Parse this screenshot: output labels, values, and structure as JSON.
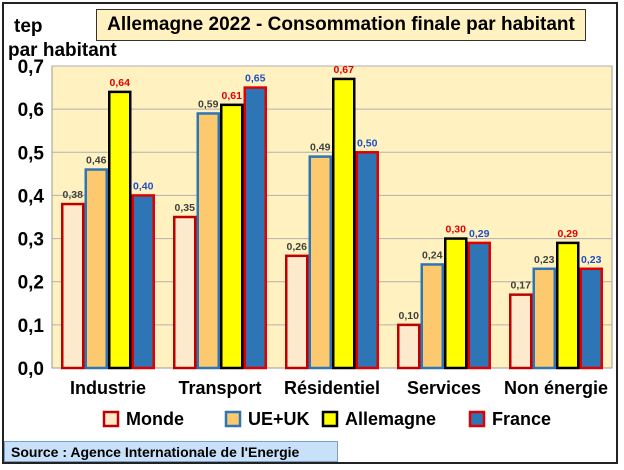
{
  "chart_data": {
    "type": "bar",
    "title": "Allemagne 2022 - Consommation finale par habitant",
    "ylabel_line1": "tep",
    "ylabel_line2": "par habitant",
    "xlabel": "",
    "ylim": [
      0,
      0.7
    ],
    "yticks": [
      "0,0",
      "0,1",
      "0,2",
      "0,3",
      "0,4",
      "0,5",
      "0,6",
      "0,7"
    ],
    "grid": true,
    "legend_position": "bottom",
    "categories": [
      "Industrie",
      "Transport",
      "Résidentiel",
      "Services",
      "Non énergie"
    ],
    "series": [
      {
        "name": "Monde",
        "values": [
          0.38,
          0.35,
          0.26,
          0.1,
          0.17
        ],
        "labels": [
          "0,38",
          "0,35",
          "0,26",
          "0,10",
          "0,17"
        ],
        "fill": "#fde9cc",
        "stroke": "#c00000",
        "label_color": "#404040"
      },
      {
        "name": "UE+UK",
        "values": [
          0.46,
          0.59,
          0.49,
          0.24,
          0.23
        ],
        "labels": [
          "0,46",
          "0,59",
          "0,49",
          "0,24",
          "0,23"
        ],
        "fill": "#fcc96e",
        "stroke": "#2e75b6",
        "label_color": "#404040"
      },
      {
        "name": "Allemagne",
        "values": [
          0.64,
          0.61,
          0.67,
          0.3,
          0.29
        ],
        "labels": [
          "0,64",
          "0,61",
          "0,67",
          "0,30",
          "0,29"
        ],
        "fill": "#ffff00",
        "stroke": "#000000",
        "label_color": "#e00000"
      },
      {
        "name": "France",
        "values": [
          0.4,
          0.65,
          0.5,
          0.29,
          0.23
        ],
        "labels": [
          "0,40",
          "0,65",
          "0,50",
          "0,29",
          "0,23"
        ],
        "fill": "#2e75b6",
        "stroke": "#e00000",
        "label_color": "#1f4fc8"
      }
    ],
    "plot_background": "#fff2c0",
    "source": "Source : Agence Internationale de l'Energie"
  }
}
